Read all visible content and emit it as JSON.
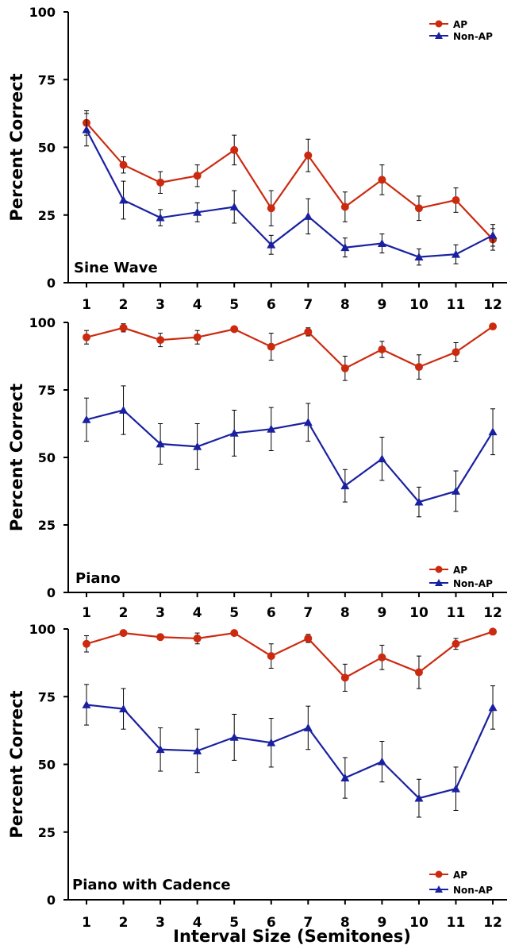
{
  "figure": {
    "xlabel": "Interval Size (Semitones)",
    "ylabel": "Percent Correct"
  },
  "colors": {
    "ap": "#cc2a0f",
    "non_ap": "#1a21a0",
    "axis": "#000000"
  },
  "chart_data": [
    {
      "type": "line",
      "title": "Sine Wave",
      "x": [
        1,
        2,
        3,
        4,
        5,
        6,
        7,
        8,
        9,
        10,
        11,
        12
      ],
      "ylim": [
        0,
        100
      ],
      "yticks": [
        0,
        25,
        50,
        75,
        100
      ],
      "ylabel": "Percent Correct",
      "legend_position": "top-right",
      "series": [
        {
          "name": "AP",
          "marker": "circle",
          "values": [
            59,
            43.5,
            37,
            39.5,
            49,
            27.5,
            47,
            28,
            38,
            27.5,
            30.5,
            16
          ],
          "errors": [
            4.5,
            3,
            4,
            4,
            5.5,
            6.5,
            6,
            5.5,
            5.5,
            4.5,
            4.5,
            4
          ]
        },
        {
          "name": "Non-AP",
          "marker": "triangle",
          "values": [
            56.5,
            30.5,
            24,
            26,
            28,
            14,
            24.5,
            13,
            14.5,
            9.5,
            10.5,
            17.5
          ],
          "errors": [
            6,
            7,
            3,
            3.5,
            6,
            3.5,
            6.5,
            3.5,
            3.5,
            3,
            3.5,
            4
          ]
        }
      ]
    },
    {
      "type": "line",
      "title": "Piano",
      "x": [
        1,
        2,
        3,
        4,
        5,
        6,
        7,
        8,
        9,
        10,
        11,
        12
      ],
      "ylim": [
        0,
        100
      ],
      "yticks": [
        0,
        25,
        50,
        75,
        100
      ],
      "ylabel": "Percent Correct",
      "legend_position": "bottom-right",
      "series": [
        {
          "name": "AP",
          "marker": "circle",
          "values": [
            94.5,
            98,
            93.5,
            94.5,
            97.5,
            91,
            96.5,
            83,
            90,
            83.5,
            89,
            98.5
          ],
          "errors": [
            2.5,
            1.5,
            2.5,
            2.5,
            1,
            5,
            1.5,
            4.5,
            3,
            4.5,
            3.5,
            0.5
          ]
        },
        {
          "name": "Non-AP",
          "marker": "triangle",
          "values": [
            64,
            67.5,
            55,
            54,
            59,
            60.5,
            63,
            39.5,
            49.5,
            33.5,
            37.5,
            59.5
          ],
          "errors": [
            8,
            9,
            7.5,
            8.5,
            8.5,
            8,
            7,
            6,
            8,
            5.5,
            7.5,
            8.5
          ]
        }
      ]
    },
    {
      "type": "line",
      "title": "Piano with Cadence",
      "x": [
        1,
        2,
        3,
        4,
        5,
        6,
        7,
        8,
        9,
        10,
        11,
        12
      ],
      "ylim": [
        0,
        100
      ],
      "yticks": [
        0,
        25,
        50,
        75,
        100
      ],
      "ylabel": "Percent Correct",
      "legend_position": "bottom-right",
      "series": [
        {
          "name": "AP",
          "marker": "circle",
          "values": [
            94.5,
            98.5,
            97,
            96.5,
            98.5,
            90,
            96.5,
            82,
            89.5,
            84,
            94.5,
            99
          ],
          "errors": [
            3,
            0.5,
            1,
            2,
            0.5,
            4.5,
            1.5,
            5,
            4.5,
            6,
            2,
            0.5
          ]
        },
        {
          "name": "Non-AP",
          "marker": "triangle",
          "values": [
            72,
            70.5,
            55.5,
            55,
            60,
            58,
            63.5,
            45,
            51,
            37.5,
            41,
            71
          ],
          "errors": [
            7.5,
            7.5,
            8,
            8,
            8.5,
            9,
            8,
            7.5,
            7.5,
            7,
            8,
            8
          ]
        }
      ]
    }
  ]
}
